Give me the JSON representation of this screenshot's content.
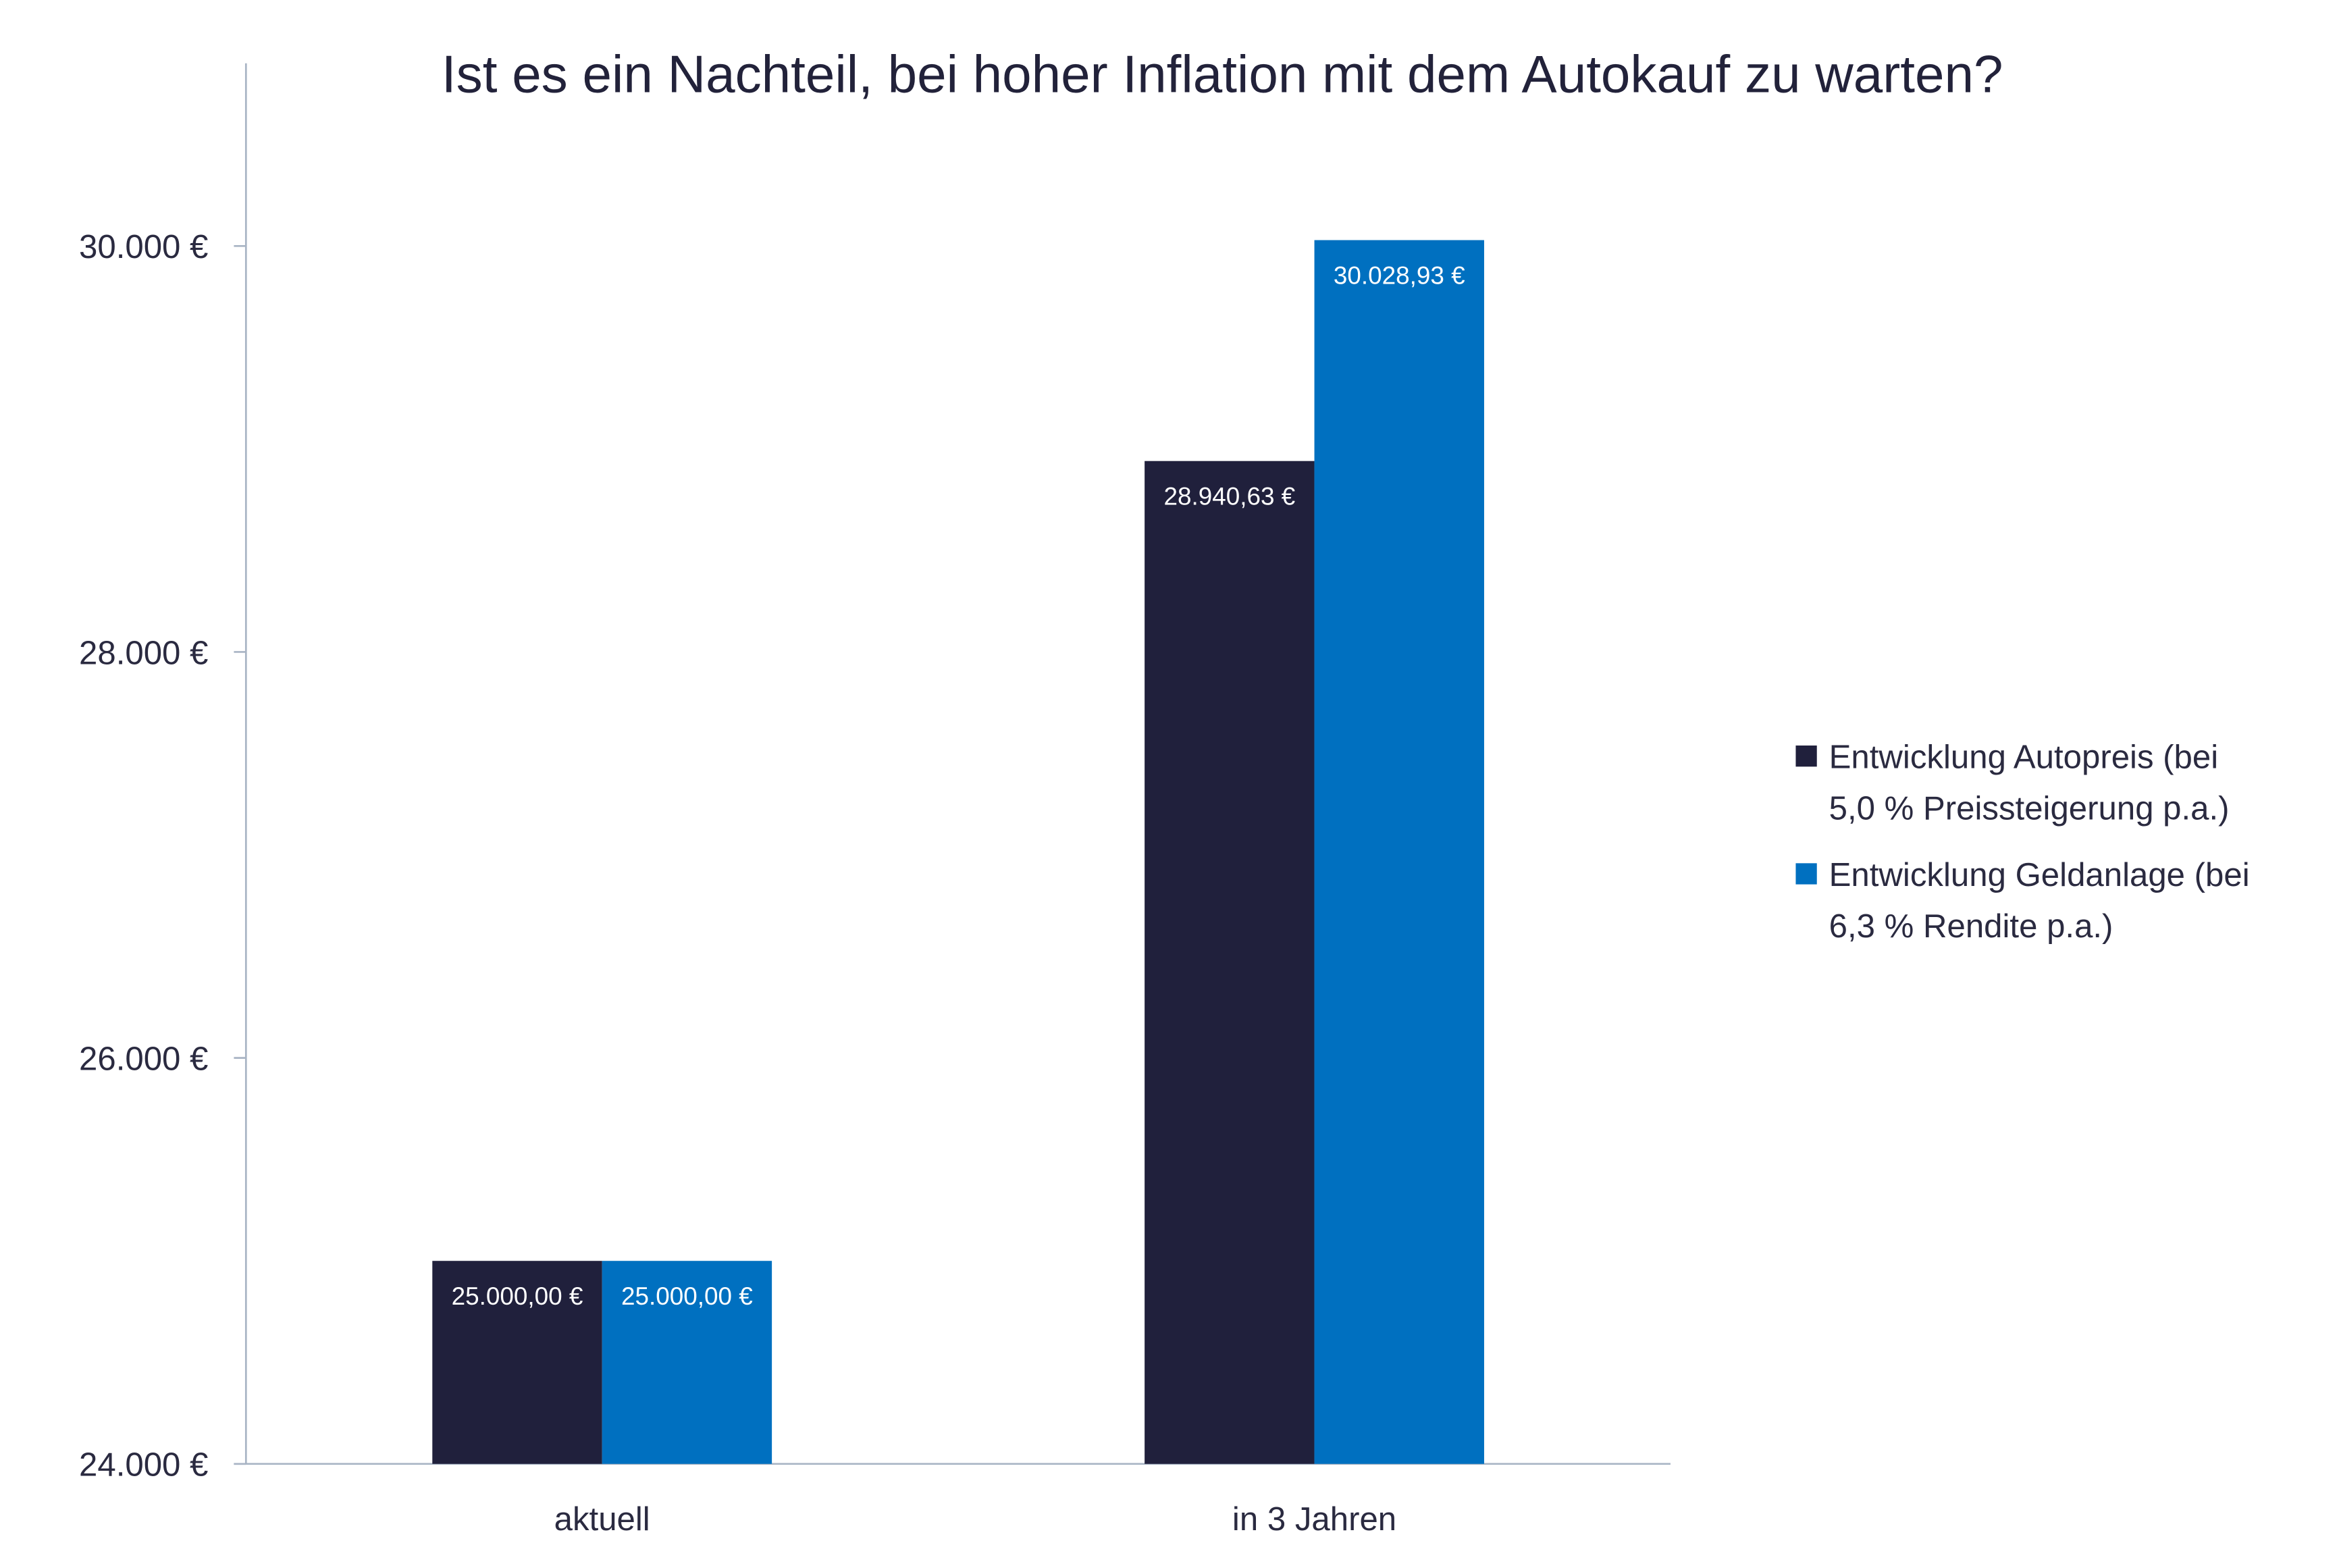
{
  "chart_data": {
    "type": "bar",
    "title": "Ist es ein Nachteil, bei hoher Inflation mit dem Autokauf zu warten?",
    "xlabel": "",
    "ylabel": "",
    "categories": [
      "aktuell",
      "in 3 Jahren"
    ],
    "ylim": [
      24000,
      30900
    ],
    "yticks": [
      24000,
      26000,
      28000,
      30000
    ],
    "ytick_labels": [
      "24.000 €",
      "26.000 €",
      "28.000 €",
      "30.000 €"
    ],
    "grid": false,
    "legend_position": "right",
    "series": [
      {
        "name_lines": [
          "Entwicklung Autopreis (bei",
          "5,0 % Preissteigerung p.a.)"
        ],
        "values": [
          25000.0,
          28940.63
        ],
        "labels": [
          "25.000,00 €",
          "28.940,63 €"
        ],
        "color": "#20203c"
      },
      {
        "name_lines": [
          "Entwicklung Geldanlage (bei",
          "6,3 % Rendite p.a.)"
        ],
        "values": [
          25000.0,
          30028.93
        ],
        "labels": [
          "25.000,00 €",
          "30.028,93 €"
        ],
        "color": "#0070c0"
      }
    ],
    "axis_color": "#a8b4c4"
  }
}
